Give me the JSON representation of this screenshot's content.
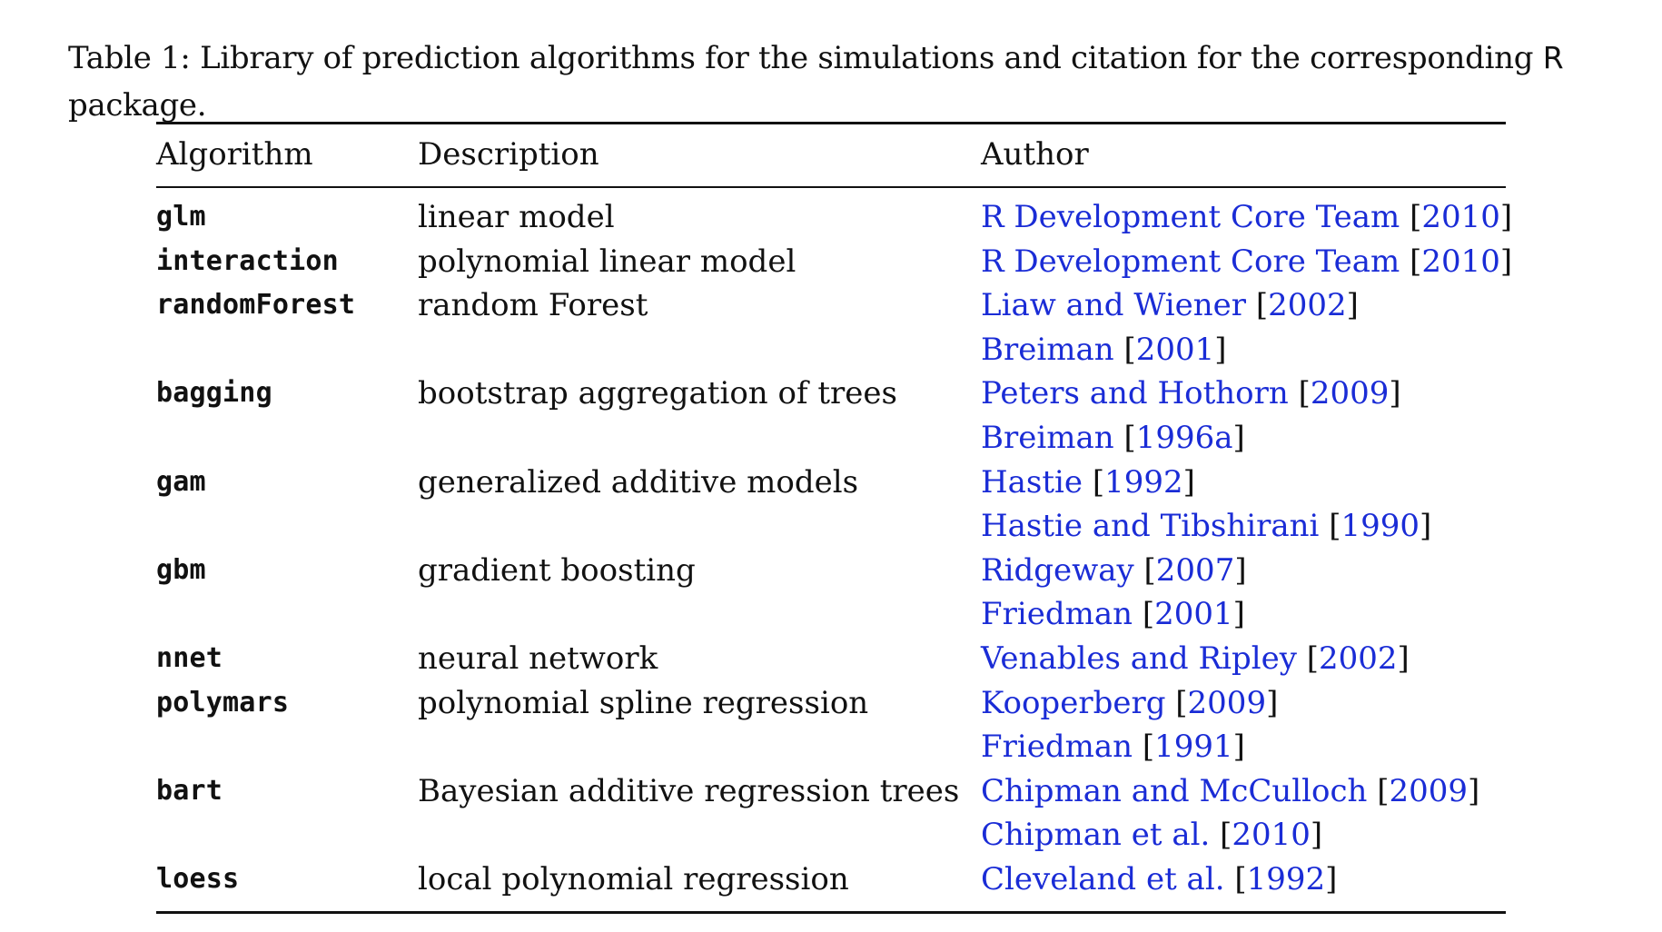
{
  "caption": {
    "text_before": "Table 1: Library of prediction algorithms for the simulations and citation for the corresponding ",
    "r_name": "R",
    "text_after": "package."
  },
  "headers": {
    "algorithm": "Algorithm",
    "description": "Description",
    "author": "Author"
  },
  "rows": [
    {
      "algorithm": "glm",
      "description": "linear model",
      "author_name": "R Development Core Team",
      "year": "2010"
    },
    {
      "algorithm": "interaction",
      "description": "polynomial linear model",
      "author_name": "R Development Core Team",
      "year": "2010"
    },
    {
      "algorithm": "randomForest",
      "description": "random Forest",
      "author_name": "Liaw and Wiener",
      "year": "2002"
    },
    {
      "algorithm": "",
      "description": "",
      "author_name": "Breiman",
      "year": "2001"
    },
    {
      "algorithm": "bagging",
      "description": "bootstrap aggregation of trees",
      "author_name": "Peters and Hothorn",
      "year": "2009"
    },
    {
      "algorithm": "",
      "description": "",
      "author_name": "Breiman",
      "year": "1996a"
    },
    {
      "algorithm": "gam",
      "description": "generalized additive models",
      "author_name": "Hastie",
      "year": "1992"
    },
    {
      "algorithm": "",
      "description": "",
      "author_name": "Hastie and Tibshirani",
      "year": "1990"
    },
    {
      "algorithm": "gbm",
      "description": "gradient boosting",
      "author_name": "Ridgeway",
      "year": "2007"
    },
    {
      "algorithm": "",
      "description": "",
      "author_name": "Friedman",
      "year": "2001"
    },
    {
      "algorithm": "nnet",
      "description": "neural network",
      "author_name": "Venables and Ripley",
      "year": "2002"
    },
    {
      "algorithm": "polymars",
      "description": "polynomial spline regression",
      "author_name": "Kooperberg",
      "year": "2009"
    },
    {
      "algorithm": "",
      "description": "",
      "author_name": "Friedman",
      "year": "1991"
    },
    {
      "algorithm": "bart",
      "description": "Bayesian additive regression trees",
      "author_name": "Chipman and McCulloch",
      "year": "2009"
    },
    {
      "algorithm": "",
      "description": "",
      "author_name": "Chipman et al.",
      "year": "2010"
    },
    {
      "algorithm": "loess",
      "description": "local polynomial regression",
      "author_name": "Cleveland et al.",
      "year": "1992"
    }
  ],
  "colors": {
    "link": "#1a2cd6",
    "text": "#111111"
  }
}
